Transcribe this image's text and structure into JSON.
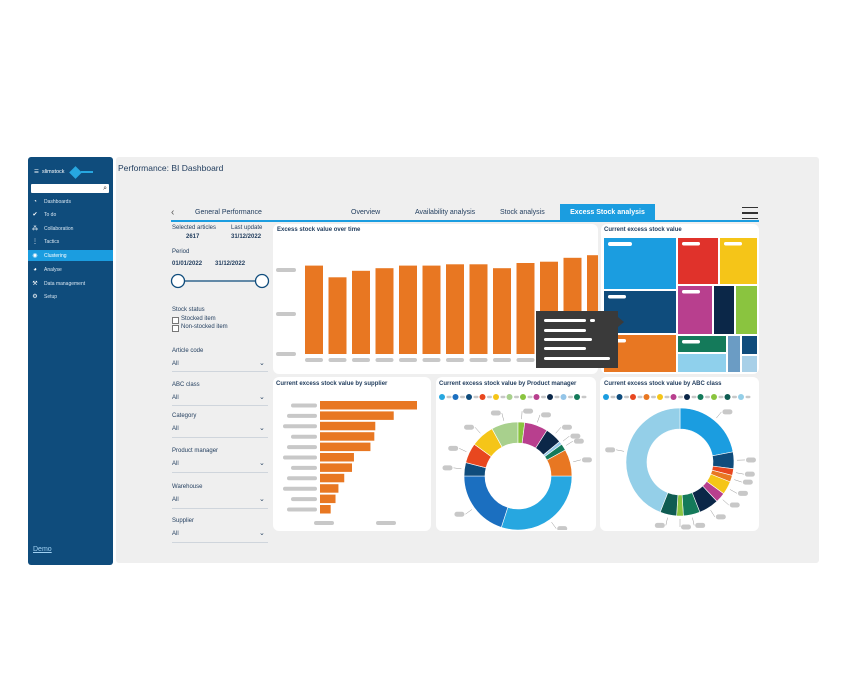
{
  "sidebar": {
    "logo_text": "slimstock",
    "search_icon": "magnifier-icon",
    "items": [
      {
        "label": "Dashboards",
        "icon": "dashboard-icon"
      },
      {
        "label": "To do",
        "icon": "checkmark-icon"
      },
      {
        "label": "Collaboration",
        "icon": "people-icon"
      },
      {
        "label": "Tactics",
        "icon": "tactics-icon"
      },
      {
        "label": "Clustering",
        "icon": "eye-icon",
        "active": true
      },
      {
        "label": "Analyse",
        "icon": "pie-icon"
      },
      {
        "label": "Data management",
        "icon": "wrench-icon"
      },
      {
        "label": "Setup",
        "icon": "gear-icon"
      }
    ],
    "footer_link": "Demo"
  },
  "header": {
    "title": "Performance: BI Dashboard"
  },
  "tabs": {
    "general": "General Performance",
    "overview": "Overview",
    "availability": "Availability analysis",
    "stock": "Stock analysis",
    "excess": "Excess Stock analysis"
  },
  "filters": {
    "selected_articles_label": "Selected articles",
    "selected_articles_value": "2617",
    "last_update_label": "Last update",
    "last_update_value": "31/12/2022",
    "period_label": "Period",
    "period_start": "01/01/2022",
    "period_end": "31/12/2022",
    "stock_status_label": "Stock status",
    "stocked_item": "Stocked item",
    "non_stocked_item": "Non-stocked item",
    "dropdowns": [
      {
        "label": "Article code",
        "value": "All"
      },
      {
        "label": "ABC class",
        "value": "All"
      },
      {
        "label": "Category",
        "value": "All"
      },
      {
        "label": "Product manager",
        "value": "All"
      },
      {
        "label": "Warehouse",
        "value": "All"
      },
      {
        "label": "Supplier",
        "value": "All"
      }
    ]
  },
  "cards": {
    "over_time_title": "Excess stock value over time",
    "treemap_title": "Current excess stock value",
    "supplier_title": "Current excess stock value by supplier",
    "pm_title": "Current excess stock value by Product manager",
    "abc_title": "Current excess stock value by ABC class"
  },
  "colors": {
    "sidebar": "#0f4c7c",
    "accent": "#1b9de0",
    "bar": "#e87722"
  },
  "chart_data": [
    {
      "type": "bar",
      "values": [
        68,
        59,
        64,
        66,
        68,
        68,
        69,
        69,
        66,
        70,
        71,
        74,
        76
      ],
      "ylim": [
        0,
        80
      ]
    },
    {
      "type": "bar",
      "orientation": "horizontal",
      "values": [
        100,
        76,
        57,
        56,
        52,
        35,
        33,
        25,
        19,
        16,
        11
      ]
    },
    {
      "type": "pie",
      "donut": true,
      "values": [
        30,
        20,
        4,
        6,
        7,
        8,
        2,
        7,
        5,
        1,
        2,
        8
      ],
      "colors": [
        "#27a7e0",
        "#1b6fc0",
        "#0f4c7c",
        "#e8471f",
        "#f5c518",
        "#a8d08d",
        "#8ac43f",
        "#b83f8e",
        "#0b2748",
        "#94c5e8",
        "#147a5a",
        "#e87722"
      ]
    },
    {
      "type": "pie",
      "donut": true,
      "values": [
        22,
        5,
        2,
        2,
        4,
        3,
        6,
        5,
        2,
        5,
        44
      ],
      "colors": [
        "#1b9de0",
        "#0f4c7c",
        "#e8471f",
        "#e87722",
        "#f5c518",
        "#b83f8e",
        "#0b2748",
        "#147a5a",
        "#8ac43f",
        "#0f5c52",
        "#94cfe8"
      ]
    }
  ]
}
